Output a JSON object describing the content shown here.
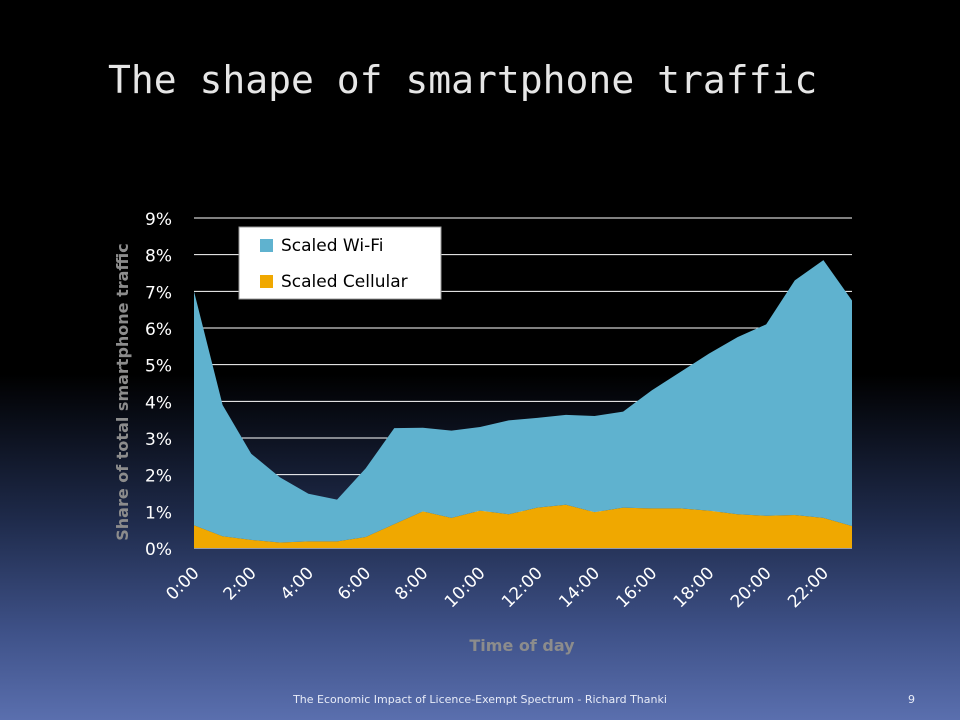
{
  "slide": {
    "title": "The shape of smartphone traffic",
    "footer": "The Economic Impact of Licence-Exempt Spectrum - Richard Thanki",
    "page_number": "9"
  },
  "chart_data": {
    "type": "area",
    "stacked": true,
    "xlabel": "Time of day",
    "ylabel": "Share of total smartphone traffic",
    "ylim": [
      0,
      9
    ],
    "yticks": [
      "0%",
      "1%",
      "2%",
      "3%",
      "4%",
      "5%",
      "6%",
      "7%",
      "8%",
      "9%"
    ],
    "x_tick_labels": [
      "0:00",
      "2:00",
      "4:00",
      "6:00",
      "8:00",
      "10:00",
      "12:00",
      "14:00",
      "16:00",
      "18:00",
      "20:00",
      "22:00"
    ],
    "x": [
      "0:00",
      "1:00",
      "2:00",
      "3:00",
      "4:00",
      "5:00",
      "6:00",
      "7:00",
      "8:00",
      "9:00",
      "10:00",
      "11:00",
      "12:00",
      "13:00",
      "14:00",
      "15:00",
      "16:00",
      "17:00",
      "18:00",
      "19:00",
      "20:00",
      "21:00",
      "22:00",
      "23:00"
    ],
    "grid": true,
    "legend_position": "top-left",
    "series": [
      {
        "name": "Scaled Cellular",
        "color": "#f0a800",
        "values": [
          0.62,
          0.32,
          0.22,
          0.15,
          0.18,
          0.18,
          0.3,
          0.65,
          1.0,
          0.82,
          1.02,
          0.92,
          1.1,
          1.18,
          0.98,
          1.1,
          1.08,
          1.08,
          1.02,
          0.92,
          0.88,
          0.9,
          0.82,
          0.6
        ]
      },
      {
        "name": "Scaled Wi-Fi",
        "color": "#5fb2cf",
        "values": [
          6.38,
          3.58,
          2.35,
          1.78,
          1.3,
          1.14,
          1.87,
          2.62,
          2.28,
          2.38,
          2.28,
          2.56,
          2.45,
          2.45,
          2.62,
          2.62,
          3.22,
          3.72,
          4.28,
          4.83,
          5.22,
          6.4,
          7.03,
          6.15
        ]
      }
    ],
    "legend_order": [
      "Scaled Wi-Fi",
      "Scaled Cellular"
    ]
  }
}
